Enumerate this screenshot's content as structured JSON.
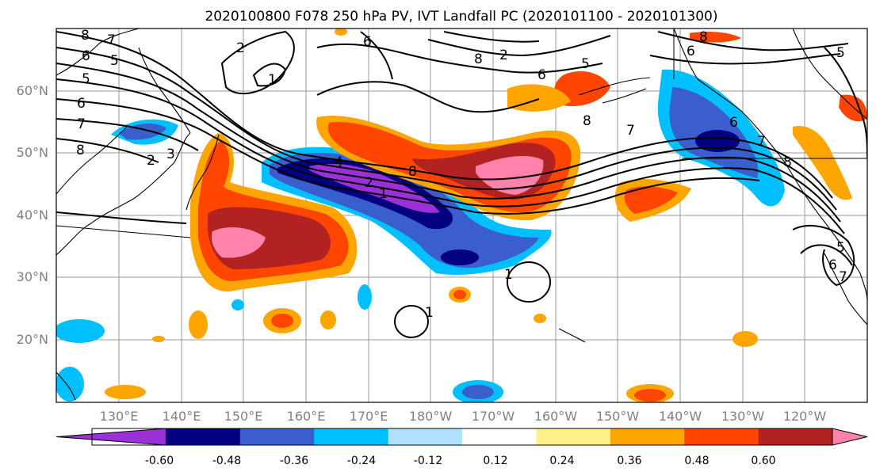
{
  "title": "2020100800 F078 250 hPa PV, IVT Landfall PC (2020101100 - 2020101300)",
  "lat_labels": [
    "60°N",
    "50°N",
    "40°N",
    "30°N",
    "20°N"
  ],
  "lon_labels": [
    "130°E",
    "140°E",
    "150°E",
    "160°E",
    "170°E",
    "180°W",
    "170°W",
    "160°W",
    "150°W",
    "140°W",
    "130°W",
    "120°W"
  ],
  "colorbar": {
    "ticks": [
      "-0.60",
      "-0.48",
      "-0.36",
      "-0.24",
      "-0.12",
      "0.12",
      "0.24",
      "0.36",
      "0.48",
      "0.60"
    ],
    "colors": [
      "#9b30d9",
      "#000080",
      "#3a5fcd",
      "#00bfff",
      "#b0e2ff",
      "#ffffff",
      "#fff08a",
      "#ffa500",
      "#ff4500",
      "#b22222",
      "#ff82ab"
    ]
  },
  "contour_labels": [
    "8",
    "7",
    "6",
    "5",
    "5",
    "6",
    "7",
    "8",
    "2",
    "1",
    "6",
    "8",
    "2",
    "5",
    "6",
    "6",
    "5",
    "7",
    "8",
    "6",
    "7",
    "8",
    "4",
    "2",
    "1",
    "8",
    "2",
    "3",
    "1",
    "1",
    "5",
    "6",
    "7",
    "8"
  ]
}
